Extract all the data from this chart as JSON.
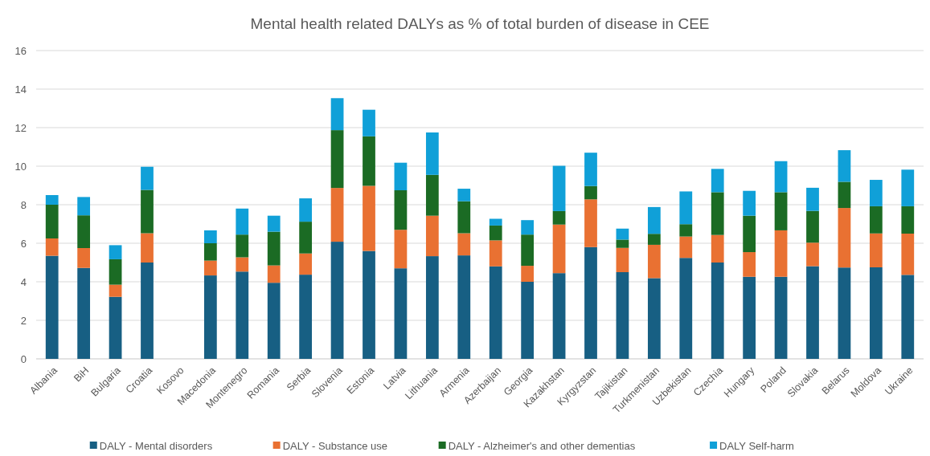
{
  "chart_data": {
    "type": "bar",
    "stacked": true,
    "title": "Mental health related DALYs as % of total burden of disease in CEE",
    "categories": [
      "Albania",
      "BiH",
      "Bulgaria",
      "Croatia",
      "Kosovo",
      "Macedonia",
      "Montenegro",
      "Romania",
      "Serbia",
      "Slovenia",
      "Estonia",
      "Latvia",
      "Lithuania",
      "Armenia",
      "Azerbaijan",
      "Georgia",
      "Kazakhstan",
      "Kyrgyzstan",
      "Tajikistan",
      "Turkmenistan",
      "Uzbekistan",
      "Czechia",
      "Hungary",
      "Poland",
      "Slovakia",
      "Belarus",
      "Moldova",
      "Ukraine"
    ],
    "series": [
      {
        "name": "DALY - Mental disorders",
        "color": "#175f83",
        "values": [
          5.35,
          4.72,
          3.22,
          5.0,
          null,
          4.33,
          4.53,
          3.95,
          4.37,
          6.08,
          5.6,
          4.7,
          5.33,
          5.37,
          4.8,
          4.0,
          4.45,
          5.8,
          4.5,
          4.19,
          5.24,
          5.0,
          4.26,
          4.26,
          4.81,
          4.74,
          4.75,
          4.36
        ]
      },
      {
        "name": "DALY - Substance use",
        "color": "#e97132",
        "values": [
          0.9,
          1.03,
          0.63,
          1.52,
          null,
          0.77,
          0.74,
          0.9,
          1.1,
          2.79,
          3.38,
          2.0,
          2.1,
          1.15,
          1.35,
          0.83,
          2.52,
          2.48,
          1.26,
          1.73,
          1.11,
          1.43,
          1.28,
          2.41,
          1.22,
          3.09,
          1.76,
          2.14
        ]
      },
      {
        "name": "DALY - Alzheimer's and other dementias",
        "color": "#1b6b24",
        "values": [
          1.75,
          1.7,
          1.32,
          2.25,
          null,
          0.9,
          1.18,
          1.75,
          1.65,
          3.0,
          2.57,
          2.05,
          2.12,
          1.66,
          0.77,
          1.62,
          0.7,
          0.69,
          0.43,
          0.57,
          0.64,
          2.22,
          1.89,
          1.98,
          1.65,
          1.36,
          1.41,
          1.42
        ]
      },
      {
        "name": "DALY Self-harm",
        "color": "#10a0d8",
        "values": [
          0.5,
          0.95,
          0.73,
          1.2,
          null,
          0.67,
          1.35,
          0.83,
          1.21,
          1.66,
          1.38,
          1.43,
          2.2,
          0.65,
          0.35,
          0.75,
          2.35,
          1.73,
          0.57,
          1.39,
          1.7,
          1.21,
          1.29,
          1.61,
          1.2,
          1.64,
          1.37,
          1.9
        ]
      }
    ],
    "ylim": [
      0,
      16
    ],
    "yticks": [
      0,
      2,
      4,
      6,
      8,
      10,
      12,
      14,
      16
    ],
    "grid": "y",
    "legend": "bottom"
  }
}
